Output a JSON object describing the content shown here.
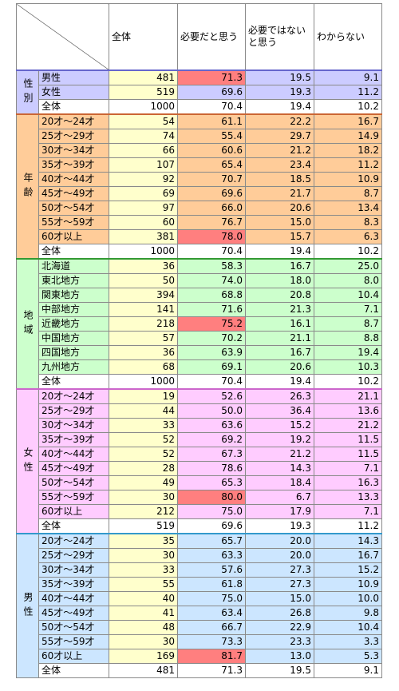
{
  "table": {
    "header": [
      "全体",
      "必要だと思う",
      "必要ではないと思う",
      "わからない"
    ],
    "groups": [
      {
        "label": "性別",
        "color": "#ccccff",
        "edge": "#6666cc",
        "highlight_rows": [
          0
        ],
        "rows": [
          [
            "男性",
            "481",
            "71.3",
            "19.5",
            "9.1"
          ],
          [
            "女性",
            "519",
            "69.6",
            "19.3",
            "11.2"
          ]
        ],
        "total": [
          "全体",
          "1000",
          "70.4",
          "19.4",
          "10.2"
        ]
      },
      {
        "label": "年齢",
        "color": "#ffcc99",
        "edge": "#cc6633",
        "highlight_rows": [
          8
        ],
        "rows": [
          [
            "20才～24才",
            "54",
            "61.1",
            "22.2",
            "16.7"
          ],
          [
            "25才～29才",
            "74",
            "55.4",
            "29.7",
            "14.9"
          ],
          [
            "30才～34才",
            "66",
            "60.6",
            "21.2",
            "18.2"
          ],
          [
            "35才～39才",
            "107",
            "65.4",
            "23.4",
            "11.2"
          ],
          [
            "40才～44才",
            "92",
            "70.7",
            "18.5",
            "10.9"
          ],
          [
            "45才～49才",
            "69",
            "69.6",
            "21.7",
            "8.7"
          ],
          [
            "50才～54才",
            "97",
            "66.0",
            "20.6",
            "13.4"
          ],
          [
            "55才～59才",
            "60",
            "76.7",
            "15.0",
            "8.3"
          ],
          [
            "60才以上",
            "381",
            "78.0",
            "15.7",
            "6.3"
          ]
        ],
        "total": [
          "全体",
          "1000",
          "70.4",
          "19.4",
          "10.2"
        ]
      },
      {
        "label": "地域",
        "color": "#ccffcc",
        "edge": "#339933",
        "highlight_rows": [
          4
        ],
        "rows": [
          [
            "北海道",
            "36",
            "58.3",
            "16.7",
            "25.0"
          ],
          [
            "東北地方",
            "50",
            "74.0",
            "18.0",
            "8.0"
          ],
          [
            "関東地方",
            "394",
            "68.8",
            "20.8",
            "10.4"
          ],
          [
            "中部地方",
            "141",
            "71.6",
            "21.3",
            "7.1"
          ],
          [
            "近畿地方",
            "218",
            "75.2",
            "16.1",
            "8.7"
          ],
          [
            "中国地方",
            "57",
            "70.2",
            "21.1",
            "8.8"
          ],
          [
            "四国地方",
            "36",
            "63.9",
            "16.7",
            "19.4"
          ],
          [
            "九州地方",
            "68",
            "69.1",
            "20.6",
            "10.3"
          ]
        ],
        "total": [
          "全体",
          "1000",
          "70.4",
          "19.4",
          "10.2"
        ]
      },
      {
        "label": "女性",
        "color": "#ffccff",
        "edge": "#cc66cc",
        "highlight_rows": [
          7
        ],
        "rows": [
          [
            "20才～24才",
            "19",
            "52.6",
            "26.3",
            "21.1"
          ],
          [
            "25才～29才",
            "44",
            "50.0",
            "36.4",
            "13.6"
          ],
          [
            "30才～34才",
            "33",
            "63.6",
            "15.2",
            "21.2"
          ],
          [
            "35才～39才",
            "52",
            "69.2",
            "19.2",
            "11.5"
          ],
          [
            "40才～44才",
            "52",
            "67.3",
            "21.2",
            "11.5"
          ],
          [
            "45才～49才",
            "28",
            "78.6",
            "14.3",
            "7.1"
          ],
          [
            "50才～54才",
            "49",
            "65.3",
            "18.4",
            "16.3"
          ],
          [
            "55才～59才",
            "30",
            "80.0",
            "6.7",
            "13.3"
          ],
          [
            "60才以上",
            "212",
            "75.0",
            "17.9",
            "7.1"
          ]
        ],
        "total": [
          "全体",
          "519",
          "69.6",
          "19.3",
          "11.2"
        ]
      },
      {
        "label": "男性",
        "color": "#cce6ff",
        "edge": "#3399cc",
        "highlight_rows": [
          8
        ],
        "rows": [
          [
            "20才～24才",
            "35",
            "65.7",
            "20.0",
            "14.3"
          ],
          [
            "25才～29才",
            "30",
            "63.3",
            "20.0",
            "16.7"
          ],
          [
            "30才～34才",
            "33",
            "57.6",
            "27.3",
            "15.2"
          ],
          [
            "35才～39才",
            "55",
            "61.8",
            "27.3",
            "10.9"
          ],
          [
            "40才～44才",
            "40",
            "75.0",
            "15.0",
            "10.0"
          ],
          [
            "45才～49才",
            "41",
            "63.4",
            "26.8",
            "9.8"
          ],
          [
            "50才～54才",
            "48",
            "66.7",
            "22.9",
            "10.4"
          ],
          [
            "55才～59才",
            "30",
            "73.3",
            "23.3",
            "3.3"
          ],
          [
            "60才以上",
            "169",
            "81.7",
            "13.0",
            "5.3"
          ]
        ],
        "total": [
          "全体",
          "481",
          "71.3",
          "19.5",
          "9.1"
        ]
      }
    ]
  }
}
